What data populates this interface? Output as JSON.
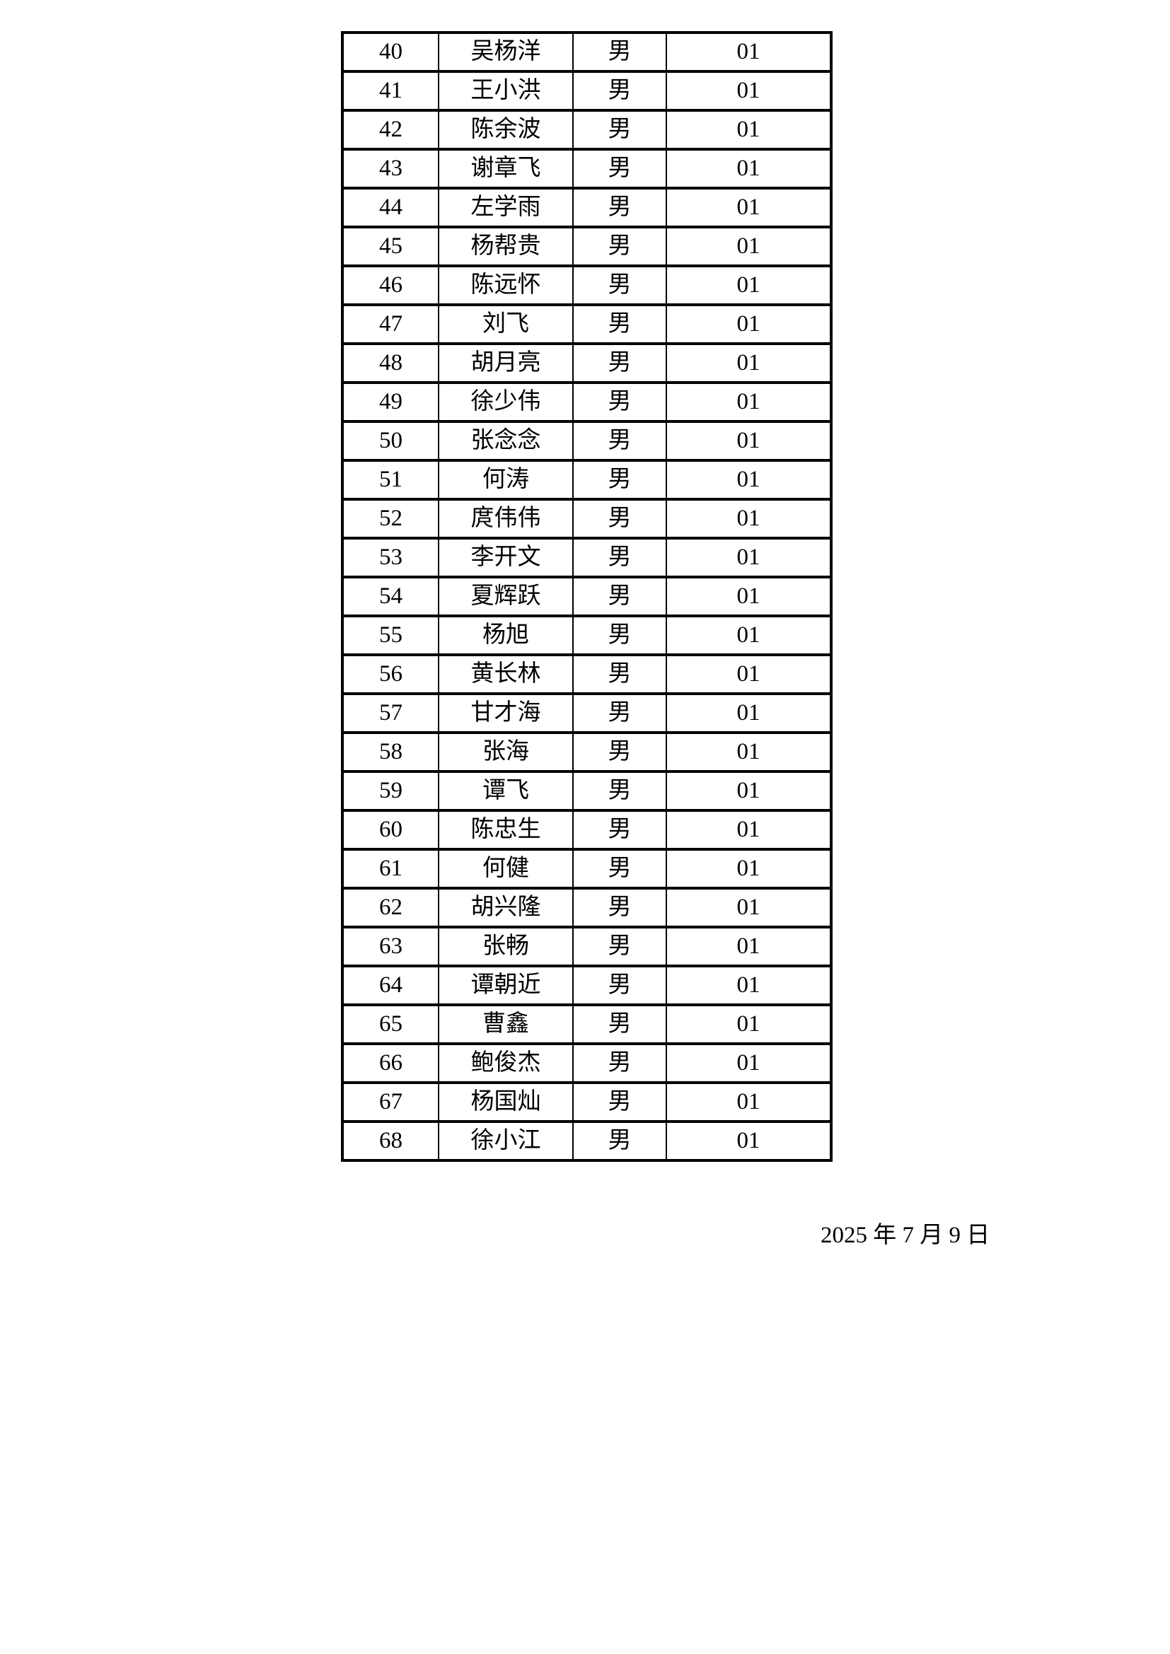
{
  "table": {
    "columns": [
      "no",
      "name",
      "gender",
      "code"
    ],
    "rows": [
      {
        "no": "40",
        "name": "吴杨洋",
        "gender": "男",
        "code": "01"
      },
      {
        "no": "41",
        "name": "王小洪",
        "gender": "男",
        "code": "01"
      },
      {
        "no": "42",
        "name": "陈余波",
        "gender": "男",
        "code": "01"
      },
      {
        "no": "43",
        "name": "谢章飞",
        "gender": "男",
        "code": "01"
      },
      {
        "no": "44",
        "name": "左学雨",
        "gender": "男",
        "code": "01"
      },
      {
        "no": "45",
        "name": "杨帮贵",
        "gender": "男",
        "code": "01"
      },
      {
        "no": "46",
        "name": "陈远怀",
        "gender": "男",
        "code": "01"
      },
      {
        "no": "47",
        "name": "刘飞",
        "gender": "男",
        "code": "01"
      },
      {
        "no": "48",
        "name": "胡月亮",
        "gender": "男",
        "code": "01"
      },
      {
        "no": "49",
        "name": "徐少伟",
        "gender": "男",
        "code": "01"
      },
      {
        "no": "50",
        "name": "张念念",
        "gender": "男",
        "code": "01"
      },
      {
        "no": "51",
        "name": "何涛",
        "gender": "男",
        "code": "01"
      },
      {
        "no": "52",
        "name": "庹伟伟",
        "gender": "男",
        "code": "01"
      },
      {
        "no": "53",
        "name": "李开文",
        "gender": "男",
        "code": "01"
      },
      {
        "no": "54",
        "name": "夏辉跃",
        "gender": "男",
        "code": "01"
      },
      {
        "no": "55",
        "name": "杨旭",
        "gender": "男",
        "code": "01"
      },
      {
        "no": "56",
        "name": "黄长林",
        "gender": "男",
        "code": "01"
      },
      {
        "no": "57",
        "name": "甘才海",
        "gender": "男",
        "code": "01"
      },
      {
        "no": "58",
        "name": "张海",
        "gender": "男",
        "code": "01"
      },
      {
        "no": "59",
        "name": "谭飞",
        "gender": "男",
        "code": "01"
      },
      {
        "no": "60",
        "name": "陈忠生",
        "gender": "男",
        "code": "01"
      },
      {
        "no": "61",
        "name": "何健",
        "gender": "男",
        "code": "01"
      },
      {
        "no": "62",
        "name": "胡兴隆",
        "gender": "男",
        "code": "01"
      },
      {
        "no": "63",
        "name": "张畅",
        "gender": "男",
        "code": "01"
      },
      {
        "no": "64",
        "name": "谭朝近",
        "gender": "男",
        "code": "01"
      },
      {
        "no": "65",
        "name": "曹鑫",
        "gender": "男",
        "code": "01"
      },
      {
        "no": "66",
        "name": "鲍俊杰",
        "gender": "男",
        "code": "01"
      },
      {
        "no": "67",
        "name": "杨国灿",
        "gender": "男",
        "code": "01"
      },
      {
        "no": "68",
        "name": "徐小江",
        "gender": "男",
        "code": "01"
      }
    ]
  },
  "footer": {
    "date": "2025 年 7 月 9 日"
  }
}
